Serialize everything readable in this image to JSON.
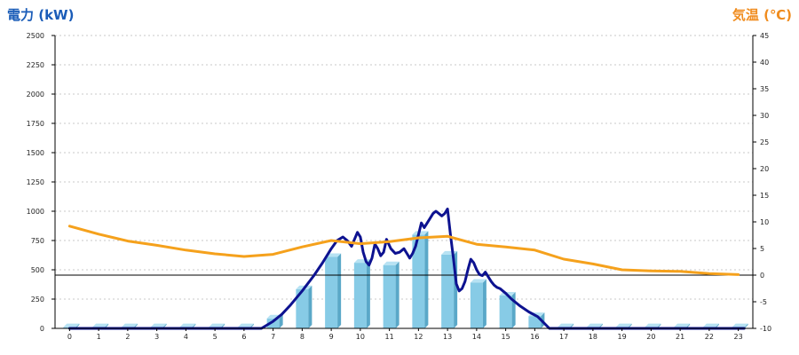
{
  "chart_data": {
    "type": "bar",
    "left_axis_title": "電力 (kW)",
    "right_axis_title": "気温 (℃)",
    "categories": [
      "0",
      "1",
      "2",
      "3",
      "4",
      "5",
      "6",
      "7",
      "8",
      "9",
      "10",
      "11",
      "12",
      "13",
      "14",
      "15",
      "16",
      "17",
      "18",
      "19",
      "20",
      "21",
      "22",
      "23"
    ],
    "ylim": [
      0,
      2500
    ],
    "yticks": [
      0,
      250,
      500,
      750,
      1000,
      1250,
      1500,
      1750,
      2000,
      2250,
      2500
    ],
    "y2lim": [
      -10,
      45
    ],
    "y2ticks": [
      -10,
      -5,
      0,
      5,
      10,
      15,
      20,
      25,
      30,
      35,
      40,
      45
    ],
    "grid": true,
    "reference_line": {
      "axis": "y2",
      "value": 0
    },
    "series": [
      {
        "kind": "bar",
        "axis": "y",
        "values": [
          10,
          10,
          10,
          10,
          10,
          10,
          10,
          85,
          335,
          610,
          560,
          540,
          800,
          630,
          390,
          280,
          105,
          10,
          10,
          10,
          10,
          10,
          10,
          10
        ],
        "color": "#87cbe6"
      },
      {
        "kind": "line",
        "axis": "y",
        "color": "#0d1290",
        "x": [
          0,
          6.6,
          7,
          7.3,
          7.6,
          8,
          8.4,
          8.7,
          9,
          9.2,
          9.4,
          9.55,
          9.7,
          9.8,
          9.9,
          10,
          10.1,
          10.2,
          10.3,
          10.4,
          10.5,
          10.6,
          10.7,
          10.8,
          10.9,
          11.05,
          11.2,
          11.35,
          11.5,
          11.6,
          11.7,
          11.8,
          11.9,
          12,
          12.1,
          12.2,
          12.3,
          12.4,
          12.5,
          12.6,
          12.7,
          12.8,
          12.9,
          13,
          13.1,
          13.2,
          13.3,
          13.4,
          13.5,
          13.6,
          13.7,
          13.8,
          13.9,
          14,
          14.1,
          14.2,
          14.3,
          14.4,
          14.5,
          14.6,
          14.7,
          14.8,
          15,
          15.2,
          15.5,
          15.8,
          16.1,
          16.5,
          23.2
        ],
        "values": [
          0,
          0,
          60,
          120,
          200,
          320,
          450,
          560,
          680,
          750,
          780,
          750,
          700,
          760,
          820,
          780,
          650,
          570,
          540,
          600,
          720,
          680,
          620,
          650,
          760,
          680,
          640,
          650,
          680,
          640,
          600,
          640,
          700,
          800,
          900,
          860,
          900,
          940,
          980,
          1000,
          980,
          960,
          980,
          1020,
          800,
          600,
          380,
          320,
          340,
          400,
          500,
          590,
          560,
          500,
          460,
          450,
          480,
          440,
          400,
          370,
          350,
          340,
          300,
          250,
          190,
          140,
          100,
          0,
          0
        ]
      },
      {
        "kind": "line",
        "axis": "y2",
        "color": "#f5a11c",
        "x": [
          0,
          1,
          2,
          3,
          4,
          5,
          6,
          7,
          8,
          9,
          10,
          11,
          12,
          13,
          14,
          15,
          16,
          17,
          18,
          19,
          20,
          21,
          22,
          23
        ],
        "values": [
          9.2,
          7.7,
          6.4,
          5.6,
          4.7,
          4.0,
          3.5,
          3.9,
          5.3,
          6.5,
          5.9,
          6.3,
          7.0,
          7.3,
          5.8,
          5.3,
          4.7,
          3.0,
          2.1,
          1.0,
          0.8,
          0.7,
          0.3,
          0.1
        ]
      }
    ],
    "colors": {
      "left_title": "#1a5cb8",
      "right_title": "#f08c1e",
      "bar_side": "#5aa8c8",
      "bar_top": "#b7e2f3",
      "grid": "#c8c8c8",
      "reference": "#000000"
    }
  }
}
